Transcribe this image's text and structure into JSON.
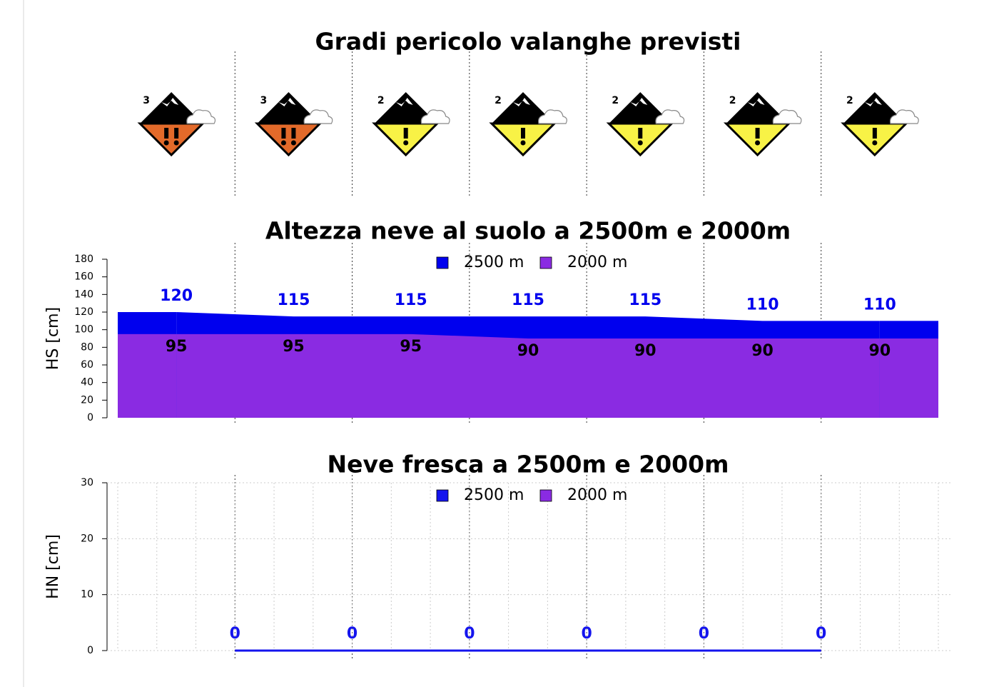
{
  "chart_data": [
    {
      "type": "danger_levels",
      "title": "Gradi pericolo valanghe previsti",
      "values": [
        3,
        3,
        2,
        2,
        2,
        2,
        2
      ],
      "colors": [
        "#e36a2a",
        "#e36a2a",
        "#f8f246",
        "#f8f246",
        "#f8f246",
        "#f8f246",
        "#f8f246"
      ]
    },
    {
      "type": "area",
      "title": "Altezza neve al suolo a 2500m e 2000m",
      "ylabel": "HS [cm]",
      "ylim": [
        0,
        180
      ],
      "yticks": [
        0,
        20,
        40,
        60,
        80,
        100,
        120,
        140,
        160,
        180
      ],
      "legend": "upper center",
      "series": [
        {
          "name": "2500 m",
          "color": "#0000ee",
          "values": [
            120,
            115,
            115,
            115,
            115,
            110,
            110
          ]
        },
        {
          "name": "2000 m",
          "color": "#8a2be2",
          "values": [
            95,
            95,
            95,
            90,
            90,
            90,
            90
          ]
        }
      ]
    },
    {
      "type": "line",
      "title": "Neve fresca a 2500m e 2000m",
      "ylabel": "HN [cm]",
      "ylim": [
        0,
        30
      ],
      "yticks": [
        0,
        10,
        20,
        30
      ],
      "grid": true,
      "legend": "upper center",
      "series": [
        {
          "name": "2500 m",
          "color": "#1414ee",
          "values": [
            0,
            0,
            0,
            0,
            0,
            0
          ]
        },
        {
          "name": "2000 m",
          "color": "#8a2be2",
          "values": [
            0,
            0,
            0,
            0,
            0,
            0
          ]
        }
      ]
    }
  ]
}
